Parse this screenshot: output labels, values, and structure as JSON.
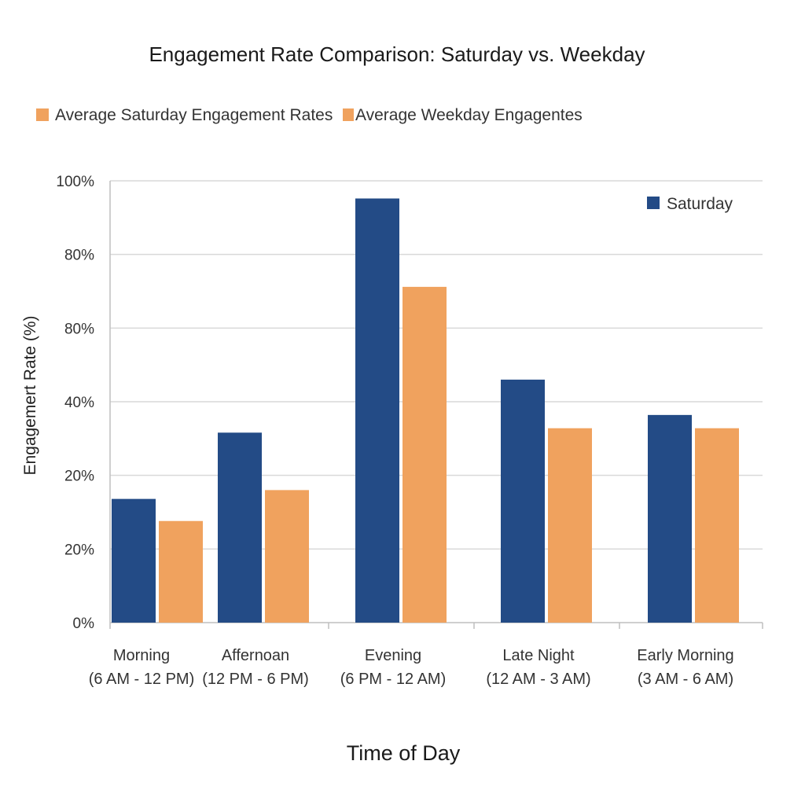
{
  "chart_data": {
    "type": "bar",
    "title": "Engagement Rate Comparison: Saturday vs. Weekday",
    "xlabel": "Time of Day",
    "ylabel": "Engagemert Rate (%)",
    "ylim": [
      0,
      100
    ],
    "y_tick_labels": [
      "0%",
      "20%",
      "20%",
      "40%",
      "80%",
      "80%",
      "100%"
    ],
    "categories": [
      {
        "line1": "Morning",
        "line2": "(6 AM - 12 PM)"
      },
      {
        "line1": "Affernoan",
        "line2": "(12 PM - 6 PM)"
      },
      {
        "line1": "Evening",
        "line2": "(6 PM - 12 AM)"
      },
      {
        "line1": "Late Night",
        "line2": "(12 AM - 3 AM)"
      },
      {
        "line1": "Early Morning",
        "line2": "(3 AM - 6 AM)"
      }
    ],
    "series": [
      {
        "name": "Saturday",
        "color": "#234B86",
        "values": [
          28,
          43,
          96,
          55,
          47
        ]
      },
      {
        "name": "Weekday",
        "color": "#F0A25E",
        "values": [
          23,
          30,
          76,
          44,
          44
        ]
      }
    ],
    "top_legend": [
      "Average Saturday Engagement Rates",
      "Average Weekday Engagentes"
    ],
    "inner_legend": "Saturday",
    "legend_color": "#F0A25E",
    "grid": true
  }
}
